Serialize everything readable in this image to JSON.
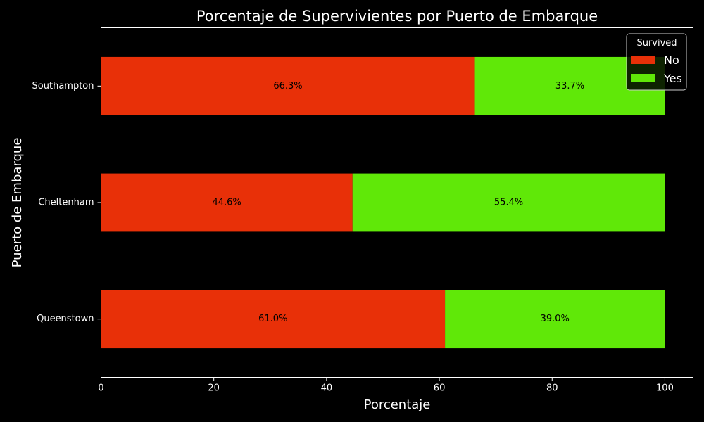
{
  "chart_data": {
    "type": "bar",
    "orientation": "horizontal",
    "stacked": true,
    "title": "Porcentaje de Supervivientes por Puerto de Embarque",
    "xlabel": "Porcentaje",
    "ylabel": "Puerto de Embarque",
    "categories": [
      "Southampton",
      "Cheltenham",
      "Queenstown"
    ],
    "series": [
      {
        "name": "No",
        "values": [
          66.3,
          44.6,
          61.0
        ],
        "labels": [
          "66.3%",
          "44.6%",
          "61.0%"
        ],
        "color": "#e83008"
      },
      {
        "name": "Yes",
        "values": [
          33.7,
          55.4,
          39.0
        ],
        "labels": [
          "33.7%",
          "55.4%",
          "39.0%"
        ],
        "color": "#60e808"
      }
    ],
    "xlim": [
      0,
      105
    ],
    "xticks": [
      0,
      20,
      40,
      60,
      80,
      100
    ],
    "grid": false,
    "legend": {
      "title": "Survived",
      "position": "top-right"
    },
    "background": "#000000",
    "foreground": "#ffffff"
  }
}
